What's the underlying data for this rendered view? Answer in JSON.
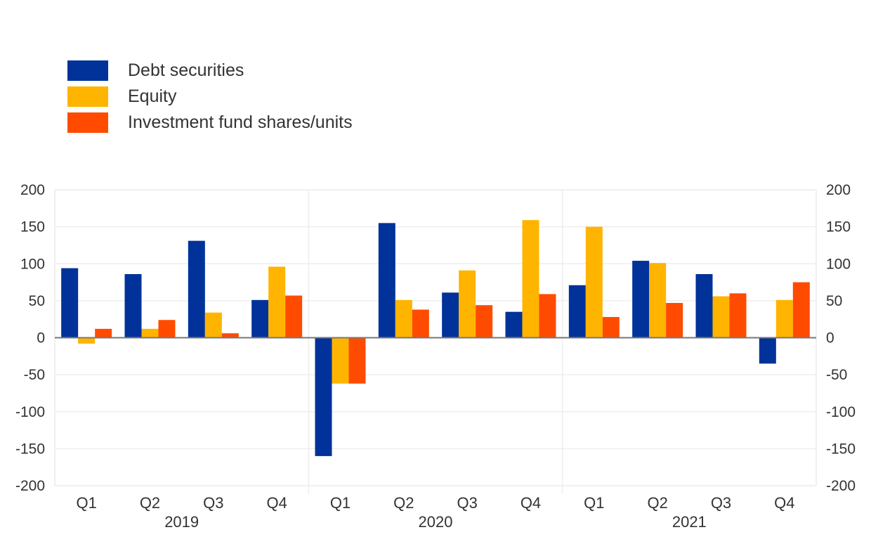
{
  "chart_data": {
    "type": "bar",
    "title": "",
    "xlabel": "",
    "ylabel": "",
    "ylim": [
      -200,
      200
    ],
    "yticks": [
      200,
      150,
      100,
      50,
      0,
      -50,
      -100,
      -150,
      -200
    ],
    "grid": true,
    "legend_position": "top-left",
    "groups": [
      {
        "year": "2019",
        "quarters": [
          "Q1",
          "Q2",
          "Q3",
          "Q4"
        ]
      },
      {
        "year": "2020",
        "quarters": [
          "Q1",
          "Q2",
          "Q3",
          "Q4"
        ]
      },
      {
        "year": "2021",
        "quarters": [
          "Q1",
          "Q2",
          "Q3",
          "Q4"
        ]
      }
    ],
    "categories": [
      "2019 Q1",
      "2019 Q2",
      "2019 Q3",
      "2019 Q4",
      "2020 Q1",
      "2020 Q2",
      "2020 Q3",
      "2020 Q4",
      "2021 Q1",
      "2021 Q2",
      "2021 Q3",
      "2021 Q4"
    ],
    "series": [
      {
        "name": "Debt securities",
        "color": "#003299",
        "values": [
          94,
          86,
          131,
          51,
          -160,
          155,
          61,
          35,
          71,
          104,
          86,
          -35
        ]
      },
      {
        "name": "Equity",
        "color": "#ffb400",
        "values": [
          -8,
          12,
          34,
          96,
          -62,
          51,
          91,
          159,
          150,
          101,
          56,
          51
        ]
      },
      {
        "name": "Investment fund shares/units",
        "color": "#ff4b00",
        "values": [
          12,
          24,
          6,
          57,
          -62,
          38,
          44,
          59,
          28,
          47,
          60,
          75
        ]
      }
    ]
  }
}
